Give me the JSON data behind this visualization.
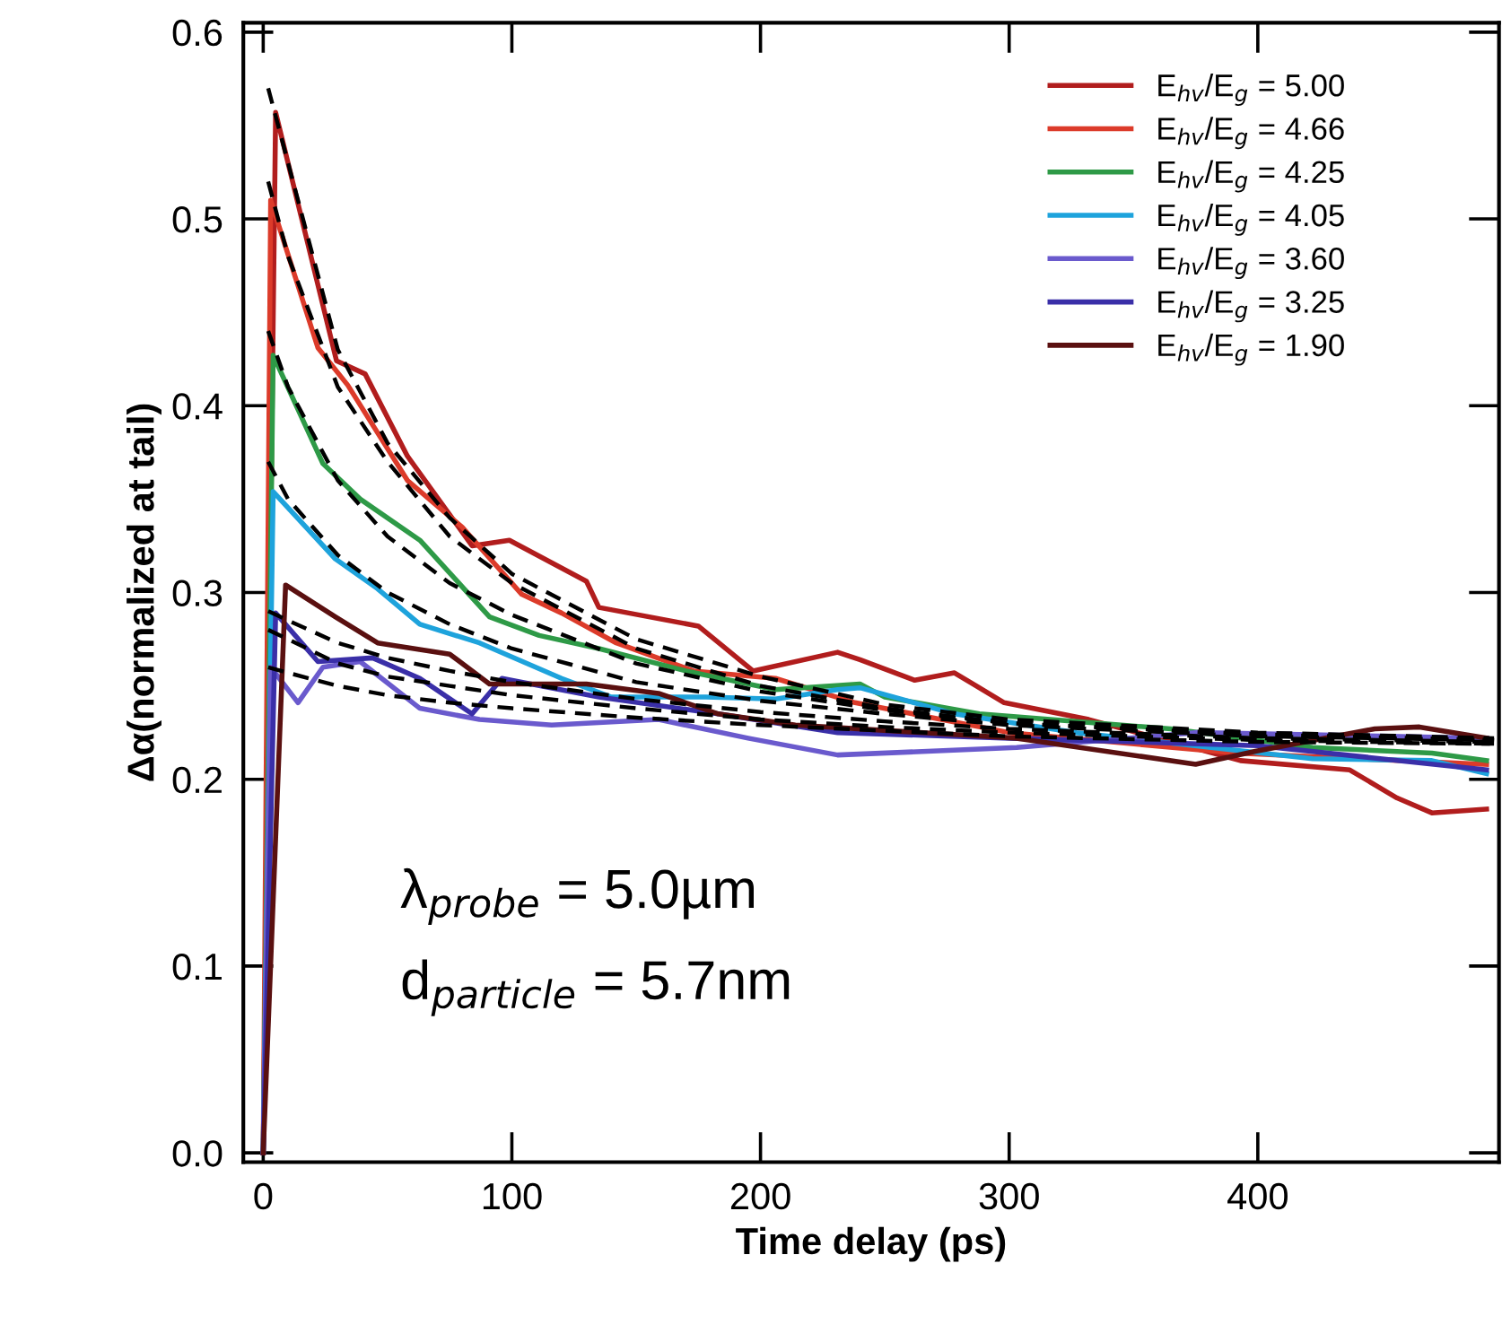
{
  "chart_data": {
    "type": "line",
    "xlabel": "Time delay (ps)",
    "ylabel": "Δα(normalized at tail)",
    "xlim": [
      -8,
      497
    ],
    "ylim": [
      -0.005,
      0.605
    ],
    "xticks": [
      0,
      100,
      200,
      300,
      400
    ],
    "yticks": [
      {
        "value": 0.0,
        "label": "0.0"
      },
      {
        "value": 0.1,
        "label": "0.1"
      },
      {
        "value": 0.2,
        "label": "0.2"
      },
      {
        "value": 0.3,
        "label": "0.3"
      },
      {
        "value": 0.4,
        "label": "0.4"
      },
      {
        "value": 0.5,
        "label": "0.5"
      },
      {
        "value": 0.6,
        "label": "0.6"
      }
    ],
    "grid": false,
    "legend": "top right",
    "marker": "none",
    "annotations": [
      "λ$_{probe}$ = 5.0µm",
      "d$_{particle}$ = 5.7nm"
    ],
    "series": [
      {
        "name": "E$_{hv}$/E$_{g}$ = 5.00",
        "color": "#b11d1d",
        "line_style": "solid",
        "x": [
          0,
          5,
          29.5,
          41,
          58,
          84,
          99,
          130,
          135,
          175,
          197,
          231,
          240,
          262,
          278,
          298,
          332,
          393,
          437,
          456,
          470,
          492
        ],
        "values": [
          0.0,
          0.557,
          0.424,
          0.417,
          0.373,
          0.325,
          0.328,
          0.306,
          0.292,
          0.282,
          0.258,
          0.268,
          0.264,
          0.253,
          0.257,
          0.241,
          0.232,
          0.21,
          0.205,
          0.19,
          0.182,
          0.184
        ]
      },
      {
        "name": "E$_{hv}$/E$_{g}$ = 4.66",
        "color": "#dc3b2a",
        "line_style": "solid",
        "x": [
          0,
          3,
          22,
          34,
          58,
          80,
          104,
          120,
          142,
          173,
          206,
          238,
          300,
          391,
          492
        ],
        "values": [
          0.0,
          0.51,
          0.431,
          0.411,
          0.36,
          0.335,
          0.299,
          0.289,
          0.273,
          0.258,
          0.254,
          0.241,
          0.225,
          0.214,
          0.208
        ]
      },
      {
        "name": "E$_{hv}$/E$_{g}$ = 4.25",
        "color": "#2e9a47",
        "line_style": "solid",
        "x": [
          0,
          4,
          24,
          39,
          63,
          91,
          111,
          135,
          170,
          206,
          240,
          250,
          288,
          365,
          422,
          470,
          492
        ],
        "values": [
          0.0,
          0.427,
          0.369,
          0.35,
          0.328,
          0.287,
          0.277,
          0.27,
          0.258,
          0.248,
          0.251,
          0.244,
          0.235,
          0.227,
          0.217,
          0.214,
          0.21
        ]
      },
      {
        "name": "E$_{hv}$/E$_{g}$ = 4.05",
        "color": "#1ea3dc",
        "line_style": "solid",
        "x": [
          0,
          4,
          29,
          46,
          63,
          87,
          120,
          140,
          178,
          206,
          231,
          240,
          278,
          327,
          422,
          470,
          492
        ],
        "values": [
          0.0,
          0.354,
          0.318,
          0.302,
          0.283,
          0.273,
          0.254,
          0.244,
          0.244,
          0.243,
          0.248,
          0.249,
          0.235,
          0.225,
          0.211,
          0.21,
          0.203
        ]
      },
      {
        "name": "E$_{hv}$/E$_{g}$ = 3.60",
        "color": "#6a5acd",
        "line_style": "solid",
        "x": [
          0,
          3,
          14,
          24,
          39,
          63,
          87,
          116,
          159,
          195,
          231,
          303,
          375,
          492
        ],
        "values": [
          0.0,
          0.26,
          0.241,
          0.26,
          0.263,
          0.238,
          0.232,
          0.229,
          0.232,
          0.222,
          0.213,
          0.217,
          0.225,
          0.222
        ]
      },
      {
        "name": "E$_{hv}$/E$_{g}$ = 3.25",
        "color": "#3a2fa8",
        "line_style": "solid",
        "x": [
          0,
          5,
          22,
          44,
          63,
          84,
          96,
          135,
          183,
          231,
          300,
          400,
          492
        ],
        "values": [
          0.0,
          0.289,
          0.263,
          0.265,
          0.254,
          0.235,
          0.254,
          0.244,
          0.235,
          0.225,
          0.222,
          0.218,
          0.205
        ]
      },
      {
        "name": "E$_{hv}$/E$_{g}$ = 1.90",
        "color": "#5a1010",
        "line_style": "solid",
        "x": [
          0,
          9,
          29,
          46,
          75,
          91,
          130,
          159,
          183,
          214,
          303,
          375,
          399,
          447,
          465,
          492
        ],
        "values": [
          0.0,
          0.304,
          0.287,
          0.273,
          0.267,
          0.251,
          0.251,
          0.246,
          0.235,
          0.229,
          0.222,
          0.208,
          0.215,
          0.227,
          0.228,
          0.222
        ]
      },
      {
        "color": "#000000",
        "line_style": "dashed",
        "x": [
          2,
          10,
          30,
          50,
          75,
          100,
          150,
          200,
          250,
          300,
          400,
          495
        ],
        "values": [
          0.57,
          0.53,
          0.43,
          0.38,
          0.34,
          0.31,
          0.275,
          0.255,
          0.24,
          0.232,
          0.225,
          0.222
        ]
      },
      {
        "color": "#000000",
        "line_style": "dashed",
        "x": [
          2,
          10,
          30,
          50,
          75,
          100,
          150,
          200,
          250,
          300,
          400,
          495
        ],
        "values": [
          0.52,
          0.48,
          0.41,
          0.37,
          0.33,
          0.305,
          0.27,
          0.25,
          0.238,
          0.23,
          0.224,
          0.221
        ]
      },
      {
        "color": "#000000",
        "line_style": "dashed",
        "x": [
          2,
          10,
          30,
          50,
          75,
          100,
          150,
          200,
          250,
          300,
          400,
          495
        ],
        "values": [
          0.44,
          0.41,
          0.36,
          0.33,
          0.305,
          0.288,
          0.262,
          0.247,
          0.237,
          0.23,
          0.224,
          0.221
        ]
      },
      {
        "color": "#000000",
        "line_style": "dashed",
        "x": [
          2,
          10,
          30,
          50,
          75,
          100,
          150,
          200,
          250,
          300,
          400,
          495
        ],
        "values": [
          0.37,
          0.35,
          0.32,
          0.3,
          0.283,
          0.27,
          0.252,
          0.242,
          0.235,
          0.229,
          0.223,
          0.221
        ]
      },
      {
        "color": "#000000",
        "line_style": "dashed",
        "x": [
          2,
          10,
          30,
          50,
          75,
          100,
          150,
          200,
          250,
          300,
          400,
          495
        ],
        "values": [
          0.29,
          0.285,
          0.273,
          0.265,
          0.258,
          0.252,
          0.243,
          0.236,
          0.231,
          0.227,
          0.222,
          0.22
        ]
      },
      {
        "color": "#000000",
        "line_style": "dashed",
        "x": [
          2,
          10,
          30,
          50,
          75,
          100,
          150,
          200,
          250,
          300,
          400,
          495
        ],
        "values": [
          0.28,
          0.275,
          0.262,
          0.255,
          0.25,
          0.245,
          0.238,
          0.232,
          0.228,
          0.225,
          0.221,
          0.219
        ]
      },
      {
        "color": "#000000",
        "line_style": "dashed",
        "x": [
          2,
          10,
          30,
          50,
          75,
          100,
          150,
          200,
          250,
          300,
          400,
          495
        ],
        "values": [
          0.26,
          0.257,
          0.25,
          0.245,
          0.241,
          0.238,
          0.233,
          0.229,
          0.226,
          0.223,
          0.22,
          0.219
        ]
      }
    ]
  }
}
